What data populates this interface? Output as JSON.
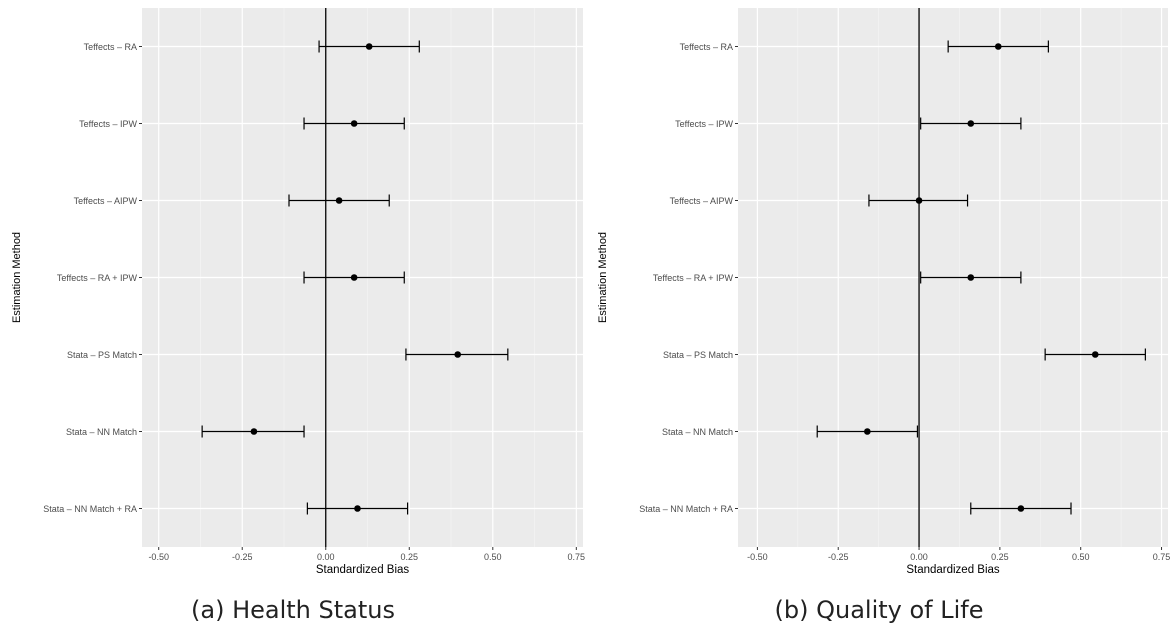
{
  "chart_data": [
    {
      "type": "errorbar",
      "caption_label": "(a)",
      "caption_text": "Health Status",
      "xlabel": "Standardized Bias",
      "ylabel": "Estimation Method",
      "xlim": [
        -0.55,
        0.77
      ],
      "xticks": [
        -0.5,
        -0.25,
        0.0,
        0.25,
        0.5,
        0.75
      ],
      "xtick_labels": [
        "-0.50",
        "-0.25",
        "0.00",
        "0.25",
        "0.50",
        "0.75"
      ],
      "reference_line_x": 0,
      "grid": true,
      "categories": [
        "Teffects – RA",
        "Teffects – IPW",
        "Teffects – AIPW",
        "Teffects – RA + IPW",
        "Stata – PS Match",
        "Stata – NN Match",
        "Stata – NN Match + RA"
      ],
      "estimates": [
        0.13,
        0.085,
        0.04,
        0.085,
        0.395,
        -0.215,
        0.095
      ],
      "lower": [
        -0.02,
        -0.065,
        -0.11,
        -0.065,
        0.24,
        -0.37,
        -0.055
      ],
      "upper": [
        0.28,
        0.235,
        0.19,
        0.235,
        0.545,
        -0.065,
        0.245
      ]
    },
    {
      "type": "errorbar",
      "caption_label": "(b)",
      "caption_text": "Quality of Life",
      "xlabel": "Standardized Bias",
      "ylabel": "Estimation Method",
      "xlim": [
        -0.56,
        0.77
      ],
      "xticks": [
        -0.5,
        -0.25,
        0.0,
        0.25,
        0.5,
        0.75
      ],
      "xtick_labels": [
        "-0.50",
        "-0.25",
        "0.00",
        "0.25",
        "0.50",
        "0.75"
      ],
      "reference_line_x": 0,
      "grid": true,
      "categories": [
        "Teffects – RA",
        "Teffects – IPW",
        "Teffects – AIPW",
        "Teffects – RA + IPW",
        "Stata – PS Match",
        "Stata – NN Match",
        "Stata – NN Match + RA"
      ],
      "estimates": [
        0.245,
        0.16,
        0.0,
        0.16,
        0.545,
        -0.16,
        0.315
      ],
      "lower": [
        0.09,
        0.005,
        -0.155,
        0.005,
        0.39,
        -0.315,
        0.16
      ],
      "upper": [
        0.4,
        0.315,
        0.15,
        0.315,
        0.7,
        -0.005,
        0.47
      ]
    }
  ]
}
